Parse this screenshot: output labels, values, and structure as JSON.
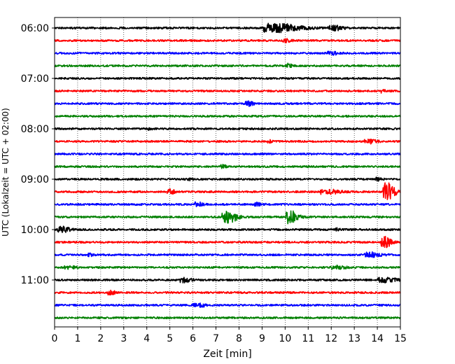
{
  "chart_data": {
    "type": "line",
    "xlabel": "Zeit  [min]",
    "ylabel": "UTC (Lokalzeit = UTC + 02:00)",
    "xlim": [
      0,
      15
    ],
    "x_ticks": [
      0,
      1,
      2,
      3,
      4,
      5,
      6,
      7,
      8,
      9,
      10,
      11,
      12,
      13,
      14,
      15
    ],
    "x_grid": "dotted vertical lines at each minute",
    "y_ticks": [
      "06:00",
      "07:00",
      "08:00",
      "09:00",
      "10:00",
      "11:00"
    ],
    "trace_interval_minutes": 15,
    "colors": {
      "black": "#000000",
      "red": "#ff0000",
      "blue": "#0000ff",
      "green": "#008000"
    },
    "traces": [
      {
        "start": "06:00",
        "color": "black",
        "events": [
          {
            "t": 9.6,
            "amp": 6,
            "width": 1.8
          },
          {
            "t": 12.1,
            "amp": 3,
            "width": 0.8
          }
        ]
      },
      {
        "start": "06:15",
        "color": "red",
        "events": [
          {
            "t": 10.0,
            "amp": 2,
            "width": 0.4
          }
        ]
      },
      {
        "start": "06:30",
        "color": "blue",
        "events": [
          {
            "t": 12.0,
            "amp": 2,
            "width": 0.6
          }
        ]
      },
      {
        "start": "06:45",
        "color": "green",
        "events": [
          {
            "t": 10.1,
            "amp": 3,
            "width": 0.3
          }
        ]
      },
      {
        "start": "07:00",
        "color": "black",
        "events": []
      },
      {
        "start": "07:15",
        "color": "red",
        "events": [
          {
            "t": 14.2,
            "amp": 2,
            "width": 0.3
          }
        ]
      },
      {
        "start": "07:30",
        "color": "blue",
        "events": [
          {
            "t": 8.4,
            "amp": 3,
            "width": 0.4
          }
        ]
      },
      {
        "start": "07:45",
        "color": "green",
        "events": []
      },
      {
        "start": "08:00",
        "color": "black",
        "events": [
          {
            "t": 4.1,
            "amp": 2,
            "width": 0.2
          }
        ]
      },
      {
        "start": "08:15",
        "color": "red",
        "events": [
          {
            "t": 9.3,
            "amp": 2,
            "width": 0.2
          },
          {
            "t": 13.6,
            "amp": 3,
            "width": 0.6
          }
        ]
      },
      {
        "start": "08:30",
        "color": "blue",
        "events": []
      },
      {
        "start": "08:45",
        "color": "green",
        "events": [
          {
            "t": 7.3,
            "amp": 2,
            "width": 0.3
          }
        ]
      },
      {
        "start": "09:00",
        "color": "black",
        "events": [
          {
            "t": 5.8,
            "amp": 2,
            "width": 0.2
          },
          {
            "t": 14.0,
            "amp": 2,
            "width": 0.3
          }
        ]
      },
      {
        "start": "09:15",
        "color": "red",
        "events": [
          {
            "t": 5.0,
            "amp": 3,
            "width": 0.4
          },
          {
            "t": 11.8,
            "amp": 3,
            "width": 1.0
          },
          {
            "t": 14.4,
            "amp": 14,
            "width": 0.6
          }
        ]
      },
      {
        "start": "09:30",
        "color": "blue",
        "events": [
          {
            "t": 6.2,
            "amp": 3,
            "width": 0.4
          },
          {
            "t": 8.8,
            "amp": 2,
            "width": 0.4
          }
        ]
      },
      {
        "start": "09:45",
        "color": "green",
        "events": [
          {
            "t": 7.5,
            "amp": 8,
            "width": 0.8
          },
          {
            "t": 10.2,
            "amp": 9,
            "width": 0.6
          }
        ]
      },
      {
        "start": "10:00",
        "color": "black",
        "events": [
          {
            "t": 0.3,
            "amp": 4,
            "width": 0.6
          },
          {
            "t": 12.2,
            "amp": 2,
            "width": 0.3
          }
        ]
      },
      {
        "start": "10:15",
        "color": "red",
        "events": [
          {
            "t": 14.3,
            "amp": 8,
            "width": 0.5
          }
        ]
      },
      {
        "start": "10:30",
        "color": "blue",
        "events": [
          {
            "t": 1.5,
            "amp": 2,
            "width": 0.3
          },
          {
            "t": 13.7,
            "amp": 3,
            "width": 0.9
          }
        ]
      },
      {
        "start": "10:45",
        "color": "green",
        "events": [
          {
            "t": 0.6,
            "amp": 2,
            "width": 0.6
          },
          {
            "t": 12.2,
            "amp": 2,
            "width": 0.8
          }
        ]
      },
      {
        "start": "11:00",
        "color": "black",
        "events": [
          {
            "t": 5.6,
            "amp": 3,
            "width": 0.6
          },
          {
            "t": 14.3,
            "amp": 3,
            "width": 1.0
          }
        ]
      },
      {
        "start": "11:15",
        "color": "red",
        "events": [
          {
            "t": 2.4,
            "amp": 3,
            "width": 0.4
          }
        ]
      },
      {
        "start": "11:30",
        "color": "blue",
        "events": [
          {
            "t": 6.2,
            "amp": 2,
            "width": 0.8
          }
        ]
      },
      {
        "start": "11:45",
        "color": "green",
        "events": []
      }
    ]
  }
}
